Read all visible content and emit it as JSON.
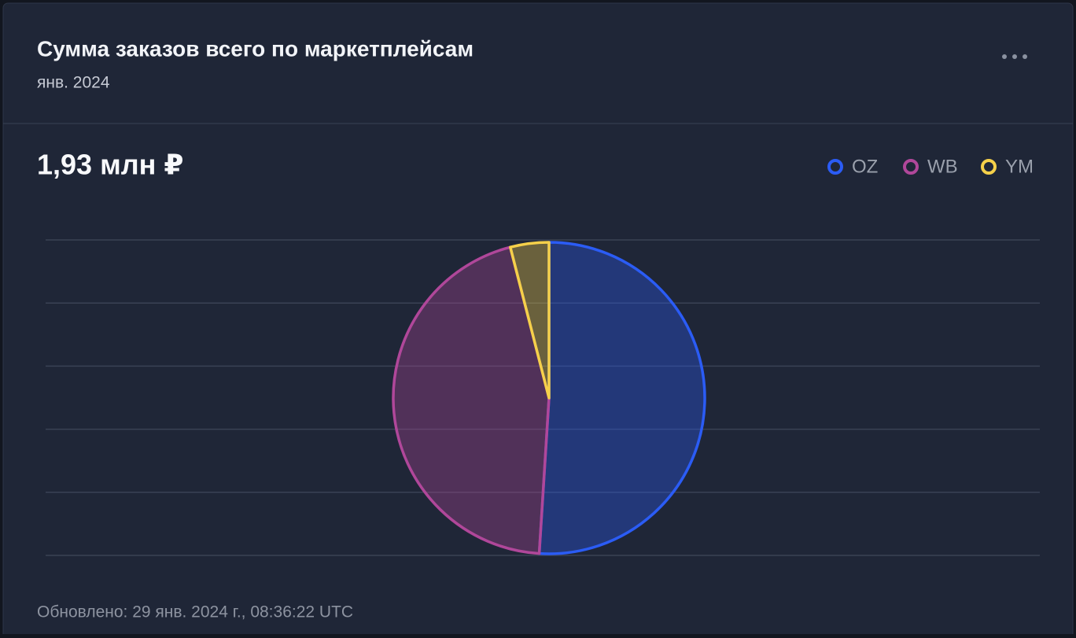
{
  "header": {
    "title": "Сумма заказов всего по маркетплейсам",
    "subtitle": "янв. 2024"
  },
  "chart_data": {
    "type": "pie",
    "total": "1,93 млн ₽",
    "categories": [
      "OZ",
      "WB",
      "YM"
    ],
    "values": [
      51,
      45,
      4
    ],
    "colors": [
      "#2b5cf5",
      "#b0479a",
      "#f5d04a"
    ],
    "grid": true,
    "legend": "top-right"
  },
  "footer": "Обновлено: 29 янв. 2024 г., 08:36:22 UTC"
}
